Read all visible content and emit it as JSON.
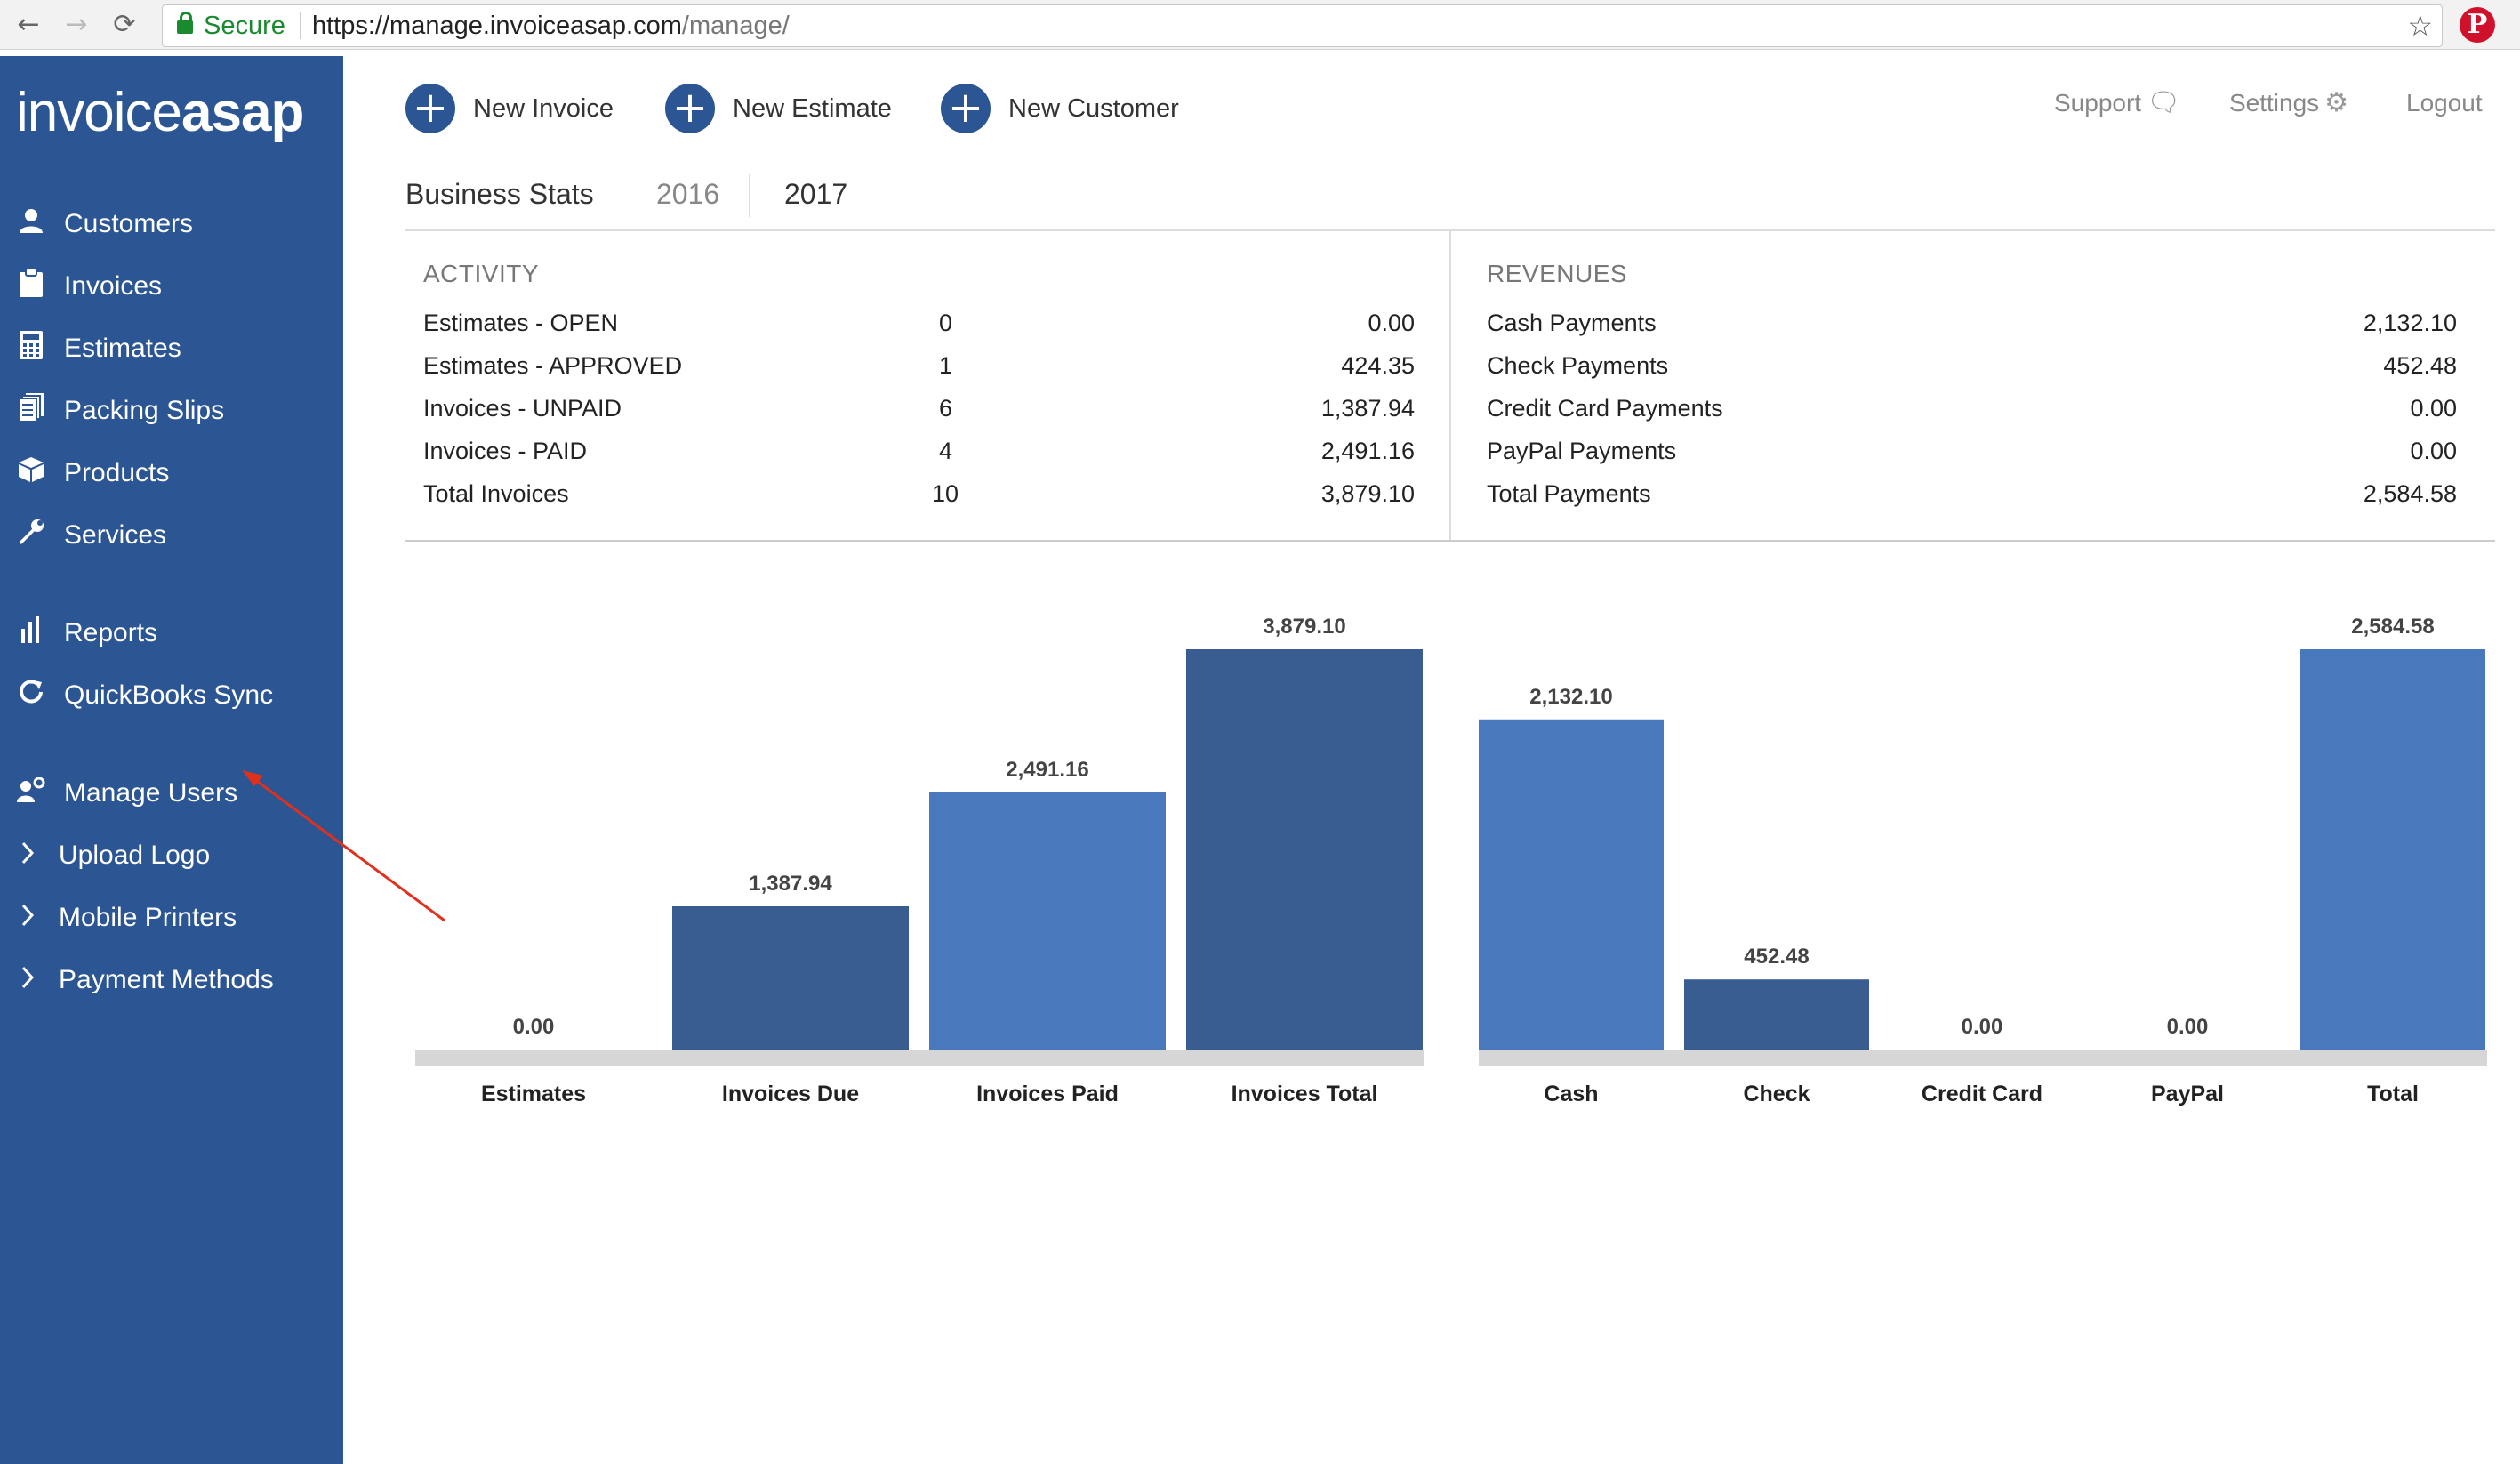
{
  "browser": {
    "back": "←",
    "forward": "→",
    "reload": "⟳",
    "secure_label": "Secure",
    "url_base": "https://manage.invoiceasap.com",
    "url_path": "/manage/",
    "star": "☆",
    "pinterest": "P"
  },
  "sidebar": {
    "logo_thin": "invoice",
    "logo_bold": "asap",
    "items": [
      {
        "label": "Customers",
        "icon": "user-icon"
      },
      {
        "label": "Invoices",
        "icon": "clipboard-icon"
      },
      {
        "label": "Estimates",
        "icon": "calculator-icon"
      },
      {
        "label": "Packing Slips",
        "icon": "packing-slips-icon"
      },
      {
        "label": "Products",
        "icon": "box-icon"
      },
      {
        "label": "Services",
        "icon": "wrench-icon"
      },
      {
        "label": "Reports",
        "icon": "bar-chart-icon"
      },
      {
        "label": "QuickBooks Sync",
        "icon": "sync-icon"
      },
      {
        "label": "Manage Users",
        "icon": "manage-users-icon"
      },
      {
        "label": "Upload Logo",
        "icon": "chevron-right-icon"
      },
      {
        "label": "Mobile Printers",
        "icon": "chevron-right-icon"
      },
      {
        "label": "Payment Methods",
        "icon": "chevron-right-icon"
      }
    ]
  },
  "actions": {
    "new_invoice": "New Invoice",
    "new_estimate": "New Estimate",
    "new_customer": "New Customer",
    "support": "Support",
    "settings": "Settings",
    "logout": "Logout"
  },
  "stats": {
    "title": "Business Stats",
    "years": [
      "2016",
      "2017"
    ],
    "selected_year": "2017",
    "activity": {
      "heading": "ACTIVITY",
      "rows": [
        {
          "label": "Estimates - OPEN",
          "count": "0",
          "amount": "0.00"
        },
        {
          "label": "Estimates - APPROVED",
          "count": "1",
          "amount": "424.35"
        },
        {
          "label": "Invoices - UNPAID",
          "count": "6",
          "amount": "1,387.94"
        },
        {
          "label": "Invoices - PAID",
          "count": "4",
          "amount": "2,491.16"
        },
        {
          "label": "Total Invoices",
          "count": "10",
          "amount": "3,879.10"
        }
      ]
    },
    "revenues": {
      "heading": "REVENUES",
      "rows": [
        {
          "label": "Cash Payments",
          "amount": "2,132.10"
        },
        {
          "label": "Check Payments",
          "amount": "452.48"
        },
        {
          "label": "Credit Card Payments",
          "amount": "0.00"
        },
        {
          "label": "PayPal Payments",
          "amount": "0.00"
        },
        {
          "label": "Total Payments",
          "amount": "2,584.58"
        }
      ]
    }
  },
  "chart_data": [
    {
      "type": "bar",
      "categories": [
        "Estimates",
        "Invoices Due",
        "Invoices Paid",
        "Invoices Total"
      ],
      "values": [
        0.0,
        1387.94,
        2491.16,
        3879.1
      ],
      "value_labels": [
        "0.00",
        "1,387.94",
        "2,491.16",
        "3,879.10"
      ],
      "colors": [
        "#395d91",
        "#395d91",
        "#4a78bd",
        "#395d91"
      ],
      "ylim": [
        0,
        3879.1
      ],
      "grid": false
    },
    {
      "type": "bar",
      "categories": [
        "Cash",
        "Check",
        "Credit Card",
        "PayPal",
        "Total"
      ],
      "values": [
        2132.1,
        452.48,
        0.0,
        0.0,
        2584.58
      ],
      "value_labels": [
        "2,132.10",
        "452.48",
        "0.00",
        "0.00",
        "2,584.58"
      ],
      "colors": [
        "#4a78bd",
        "#395d91",
        "#395d91",
        "#395d91",
        "#4a78bd"
      ],
      "ylim": [
        0,
        2584.58
      ],
      "grid": false
    }
  ]
}
